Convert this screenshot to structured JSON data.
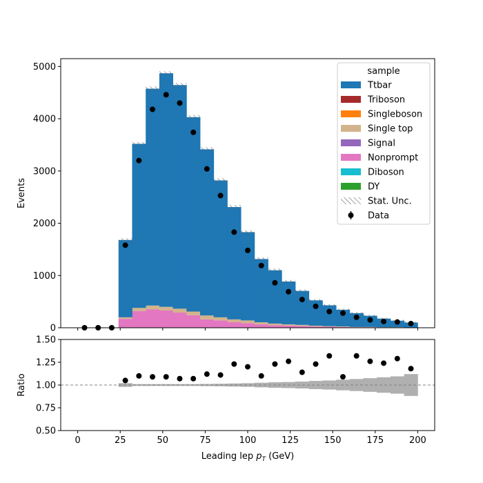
{
  "chart_data": {
    "type": "bar",
    "stacked": true,
    "xlabel_main": "Leading lep ",
    "xlabel_sym": "p",
    "xlabel_sub": "T",
    "xlabel_unit": " (GeV)",
    "ylabel_top": "Events",
    "ylabel_bottom": "Ratio",
    "xlim": [
      -10,
      210
    ],
    "ylim_top": [
      0,
      5150
    ],
    "ylim_bottom": [
      0.5,
      1.5
    ],
    "x_ticks": [
      "0",
      "25",
      "50",
      "75",
      "100",
      "125",
      "150",
      "175",
      "200"
    ],
    "y_ticks_top": [
      "0",
      "1000",
      "2000",
      "3000",
      "4000",
      "5000"
    ],
    "y_ticks_bottom": [
      "0.50",
      "0.75",
      "1.00",
      "1.25",
      "1.50"
    ],
    "bin_edges": [
      0,
      8,
      16,
      24,
      32,
      40,
      48,
      56,
      64,
      72,
      80,
      88,
      96,
      104,
      112,
      120,
      128,
      136,
      144,
      152,
      160,
      168,
      176,
      184,
      192,
      200
    ],
    "series": [
      {
        "name": "Ttbar",
        "color": "#1f77b4",
        "values": [
          0,
          0,
          0,
          1480,
          3140,
          4150,
          4470,
          4280,
          3720,
          3180,
          2620,
          2150,
          1690,
          1210,
          1020,
          820,
          650,
          485,
          400,
          320,
          265,
          215,
          165,
          125,
          95
        ]
      },
      {
        "name": "Triboson",
        "color": "#a52a2a",
        "values": [
          0,
          0,
          0,
          0,
          0,
          0,
          0,
          0,
          0,
          0,
          0,
          0,
          0,
          0,
          0,
          0,
          0,
          0,
          0,
          0,
          0,
          0,
          0,
          0,
          0
        ]
      },
      {
        "name": "Singleboson",
        "color": "#ff7f0e",
        "values": [
          0,
          0,
          0,
          0,
          0,
          0,
          0,
          0,
          0,
          0,
          0,
          0,
          0,
          0,
          0,
          0,
          0,
          0,
          0,
          0,
          0,
          0,
          0,
          0,
          0
        ]
      },
      {
        "name": "Single top",
        "color": "#d2b48c",
        "values": [
          0,
          0,
          0,
          30,
          60,
          75,
          70,
          75,
          70,
          75,
          60,
          50,
          50,
          40,
          30,
          25,
          20,
          15,
          10,
          10,
          5,
          5,
          5,
          5,
          0
        ]
      },
      {
        "name": "Signal",
        "color": "#9467bd",
        "values": [
          0,
          0,
          0,
          0,
          0,
          0,
          0,
          0,
          0,
          0,
          0,
          0,
          0,
          0,
          0,
          0,
          0,
          0,
          0,
          0,
          0,
          0,
          0,
          0,
          0
        ]
      },
      {
        "name": "Nonprompt",
        "color": "#e377c2",
        "values": [
          0,
          0,
          0,
          170,
          320,
          350,
          330,
          290,
          240,
          160,
          140,
          110,
          90,
          65,
          50,
          40,
          35,
          25,
          20,
          15,
          10,
          10,
          5,
          5,
          5
        ]
      },
      {
        "name": "Diboson",
        "color": "#17becf",
        "values": [
          0,
          0,
          0,
          0,
          0,
          0,
          0,
          0,
          0,
          0,
          0,
          0,
          0,
          0,
          0,
          0,
          0,
          0,
          0,
          0,
          0,
          0,
          0,
          0,
          0
        ]
      },
      {
        "name": "DY",
        "color": "#2ca02c",
        "values": [
          0,
          0,
          0,
          0,
          0,
          0,
          0,
          0,
          0,
          0,
          0,
          0,
          0,
          0,
          0,
          0,
          0,
          0,
          0,
          0,
          0,
          0,
          0,
          0,
          0
        ]
      }
    ],
    "stack_order": [
      "DY",
      "Diboson",
      "Nonprompt",
      "Signal",
      "Single top",
      "Singleboson",
      "Triboson",
      "Ttbar"
    ],
    "data": {
      "name": "Data",
      "x": [
        4,
        12,
        20,
        28,
        36,
        44,
        52,
        60,
        68,
        76,
        84,
        92,
        100,
        108,
        116,
        124,
        132,
        140,
        148,
        156,
        164,
        172,
        180,
        188,
        196
      ],
      "y": [
        0,
        0,
        0,
        1580,
        3200,
        4180,
        4460,
        4300,
        3740,
        3040,
        2530,
        1830,
        1480,
        1190,
        860,
        690,
        540,
        410,
        310,
        280,
        200,
        150,
        120,
        110,
        80
      ]
    },
    "ratio": [
      null,
      null,
      null,
      1.05,
      1.1,
      1.09,
      1.09,
      1.07,
      1.07,
      1.12,
      1.11,
      1.23,
      1.2,
      1.1,
      1.23,
      1.26,
      1.14,
      1.23,
      1.32,
      1.09,
      1.32,
      1.26,
      1.24,
      1.29,
      1.18
    ],
    "stat_unc_rel": [
      0,
      0,
      0,
      0.02,
      0.01,
      0.01,
      0.008,
      0.009,
      0.01,
      0.012,
      0.014,
      0.017,
      0.02,
      0.025,
      0.03,
      0.033,
      0.038,
      0.045,
      0.05,
      0.058,
      0.066,
      0.075,
      0.085,
      0.095,
      0.12
    ],
    "ratio_ref_line": 1.0,
    "legend": {
      "title": "sample",
      "position": "top-right",
      "entries": [
        "Ttbar",
        "Triboson",
        "Singleboson",
        "Single top",
        "Signal",
        "Nonprompt",
        "Diboson",
        "DY",
        "Stat. Unc.",
        "Data"
      ]
    },
    "grid": false
  }
}
